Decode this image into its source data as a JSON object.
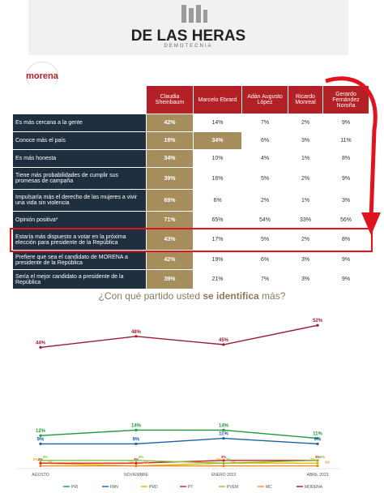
{
  "header": {
    "brand": "DE LAS HERAS",
    "sub": "DEMOTECNIA",
    "party_logo": "morena"
  },
  "table": {
    "columns": [
      "Claudia Sheinbaum",
      "Marcelo Ebrard",
      "Adán Augusto López",
      "Ricardo Monreal",
      "Gerardo Fernández Noroña"
    ],
    "rows": [
      [
        "Es más cercana a la gente",
        "42%",
        "14%",
        "7%",
        "2%",
        "9%"
      ],
      [
        "Conoce más el país",
        "19%",
        "34%",
        "6%",
        "3%",
        "11%"
      ],
      [
        "Es más honesta",
        "34%",
        "10%",
        "4%",
        "1%",
        "8%"
      ],
      [
        "Tiene más probabilidades de cumplir sus promesas de campaña",
        "39%",
        "16%",
        "5%",
        "2%",
        "9%"
      ],
      [
        "Impulsaría más el derecho de las mujeres a vivir una vida sin violencia",
        "69%",
        "6%",
        "2%",
        "1%",
        "3%"
      ],
      [
        "Opinión positiva*",
        "71%",
        "65%",
        "54%",
        "33%",
        "56%"
      ],
      [
        "Estaría más dispuesto a votar en la próxima elección para presidente de la República",
        "43%",
        "17%",
        "5%",
        "2%",
        "8%"
      ],
      [
        "Prefiere que sea el candidato de MORENA a presidente de la República",
        "42%",
        "19%",
        "6%",
        "3%",
        "9%"
      ],
      [
        "Sería el mejor candidato a presidente de la República",
        "39%",
        "21%",
        "7%",
        "3%",
        "9%"
      ]
    ]
  },
  "chart_data": {
    "type": "line",
    "title_parts": [
      "¿Con qué partido usted ",
      "se identifica",
      " más?"
    ],
    "categories": [
      "AGOSTO",
      "NOVIEMBRE",
      "ENERO 2023",
      "ABRIL 2023"
    ],
    "series": [
      {
        "name": "PRI",
        "color": "#1a9b3c",
        "values": [
          12,
          14,
          14,
          11
        ],
        "value_labels": [
          "12%",
          "14%",
          "14%",
          "11%"
        ]
      },
      {
        "name": "PAN",
        "color": "#1f5fa8",
        "values": [
          9,
          9,
          11,
          9
        ],
        "value_labels": [
          "9%",
          "9%",
          "11%",
          "9%"
        ]
      },
      {
        "name": "PRD",
        "color": "#e8b800",
        "values": [
          2,
          1,
          2,
          2
        ],
        "value_labels": [
          "2%",
          "1%",
          "2%",
          "2%"
        ]
      },
      {
        "name": "PT",
        "color": "#d62020",
        "values": [
          2,
          2,
          3,
          3
        ],
        "value_labels": [
          "2%",
          "2%",
          "3%",
          "3%"
        ]
      },
      {
        "name": "PVEM",
        "color": "#7cc242",
        "values": [
          3,
          3,
          2,
          3
        ],
        "value_labels": [
          "3%",
          "3%",
          "2%",
          "3%"
        ]
      },
      {
        "name": "MC",
        "color": "#f08a24",
        "values": [
          1,
          1,
          1,
          1
        ],
        "value_labels": [
          "1%",
          "1%",
          "1%",
          "1%"
        ]
      },
      {
        "name": "MORENA",
        "color": "#9b1b30",
        "values": [
          44,
          48,
          45,
          52
        ],
        "value_labels": [
          "44%",
          "48%",
          "45%",
          "52%"
        ]
      }
    ]
  }
}
